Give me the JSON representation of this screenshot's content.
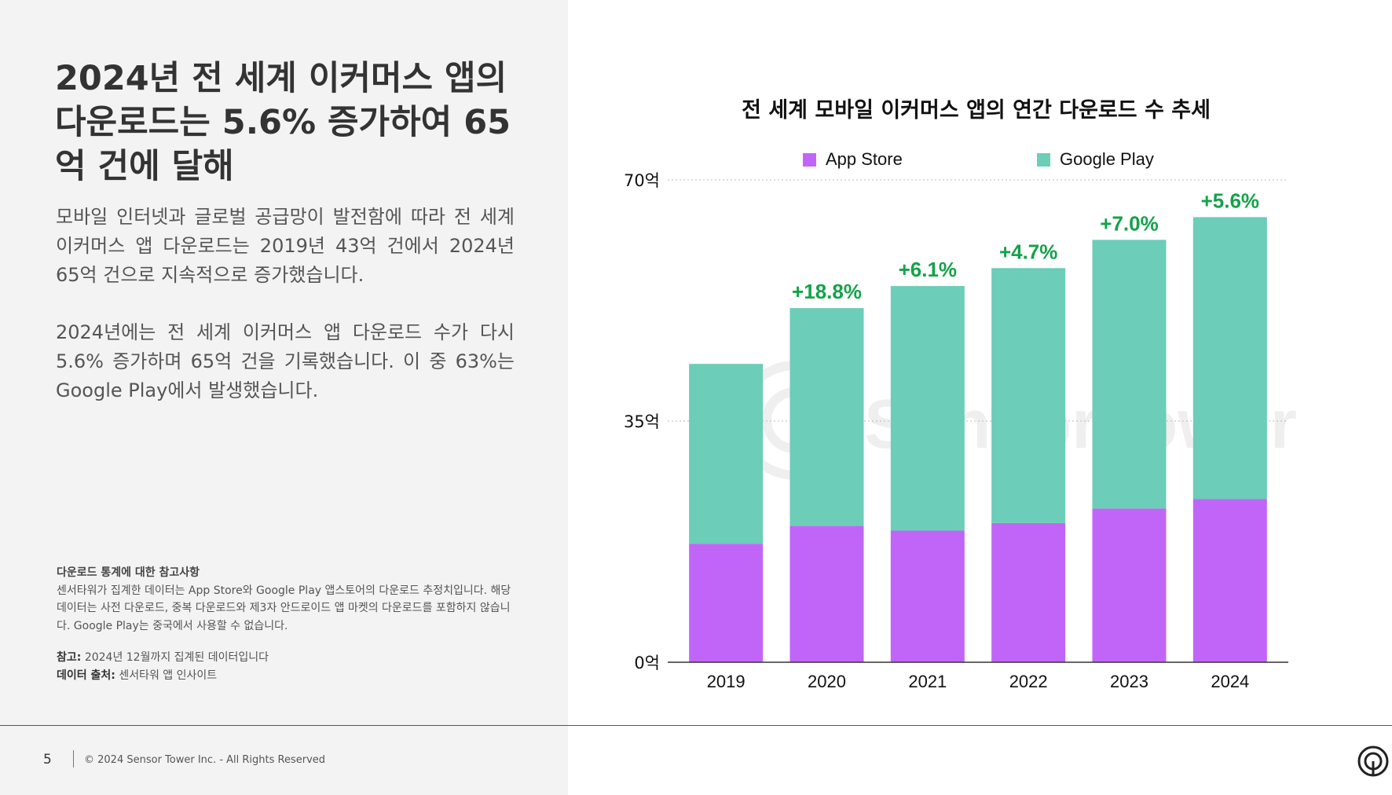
{
  "headline": "2024년 전 세계 이커머스 앱의 다운로드는 5.6% 증가하여 65억 건에 달해",
  "paragraphs": [
    "모바일 인터넷과 글로벌 공급망이 발전함에 따라 전 세계 이커머스 앱 다운로드는 2019년 43억 건에서 2024년 65억 건으로 지속적으로 증가했습니다.",
    "2024년에는 전 세계 이커머스 앱 다운로드 수가 다시 5.6% 증가하며 65억 건을 기록했습니다. 이 중 63%는 Google Play에서 발생했습니다."
  ],
  "notes": {
    "title": "다운로드 통계에 대한 참고사항",
    "text": "센서타워가 집계한 데이터는 App Store와 Google Play 앱스토어의 다운로드 추정치입니다. 해당 데이터는 사전 다운로드, 중복 다운로드와 제3자 안드로이드 앱 마켓의 다운로드를 포함하지 않습니다. Google Play는 중국에서 사용할 수 없습니다.",
    "reference_label": "참고:",
    "reference_text": "2024년 12월까지 집계된 데이터입니다",
    "source_label": "데이터 출처:",
    "source_text": "센서타워 앱 인사이트"
  },
  "footer": {
    "page_number": "5",
    "copyright": "© 2024 Sensor Tower Inc. - All Rights Reserved"
  },
  "watermark": "SensorTower",
  "colors": {
    "app_store": "#c165f8",
    "google_play": "#6ccdb8",
    "growth_label": "#14a24a",
    "left_panel_bg": "#f3f3f3"
  },
  "chart_data": {
    "type": "bar",
    "stacked": true,
    "title": "전 세계 모바일 이커머스 앱의 연간 다운로드 수 추세",
    "categories": [
      "2019",
      "2020",
      "2021",
      "2022",
      "2023",
      "2024"
    ],
    "series": [
      {
        "name": "App Store",
        "values": [
          17.2,
          19.8,
          19.1,
          20.2,
          22.3,
          23.7
        ]
      },
      {
        "name": "Google Play",
        "values": [
          26.1,
          31.6,
          35.5,
          37.0,
          39.0,
          40.9
        ]
      }
    ],
    "growth_labels": [
      "",
      "+18.8%",
      "+6.1%",
      "+4.7%",
      "+7.0%",
      "+5.6%"
    ],
    "y_ticks": [
      "0억",
      "35억",
      "70억"
    ],
    "y_tick_values": [
      0,
      35,
      70
    ],
    "ylim": [
      0,
      70
    ],
    "grid": true,
    "legend_position": "top"
  }
}
